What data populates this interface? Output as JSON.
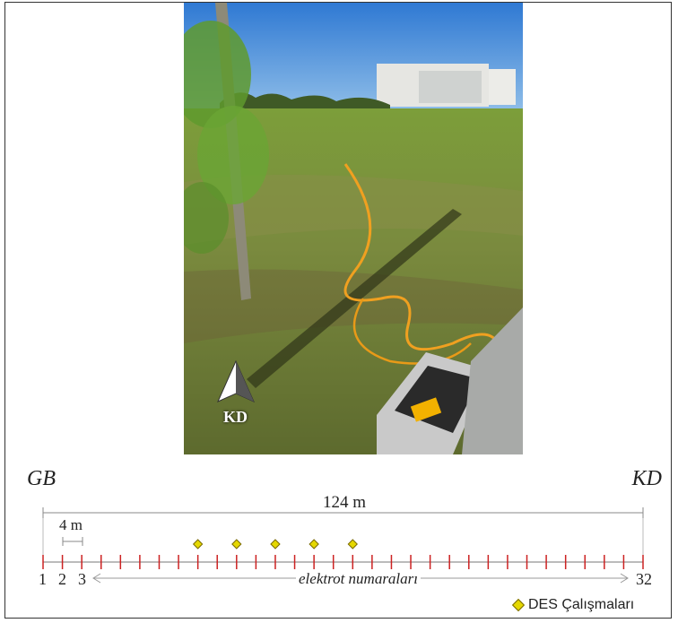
{
  "labels": {
    "gb": "GB",
    "kd": "KD",
    "total_length": "124 m",
    "spacing": "4 m",
    "electrode_numbers_caption": "elektrot numaraları",
    "photo_north_label": "KD"
  },
  "electrode_numbers": {
    "first": "1",
    "second": "2",
    "third": "3",
    "last": "32"
  },
  "profile": {
    "electrode_count": 32,
    "des_electrodes": [
      9,
      11,
      13,
      15,
      17
    ]
  },
  "legend": {
    "des_label": "DES Çalışmaları",
    "marker_color": "#e5d800"
  },
  "colors": {
    "tick": "#cc2222",
    "line": "#888888",
    "sky": "#3f86d6",
    "grass": "#6f8a36"
  }
}
